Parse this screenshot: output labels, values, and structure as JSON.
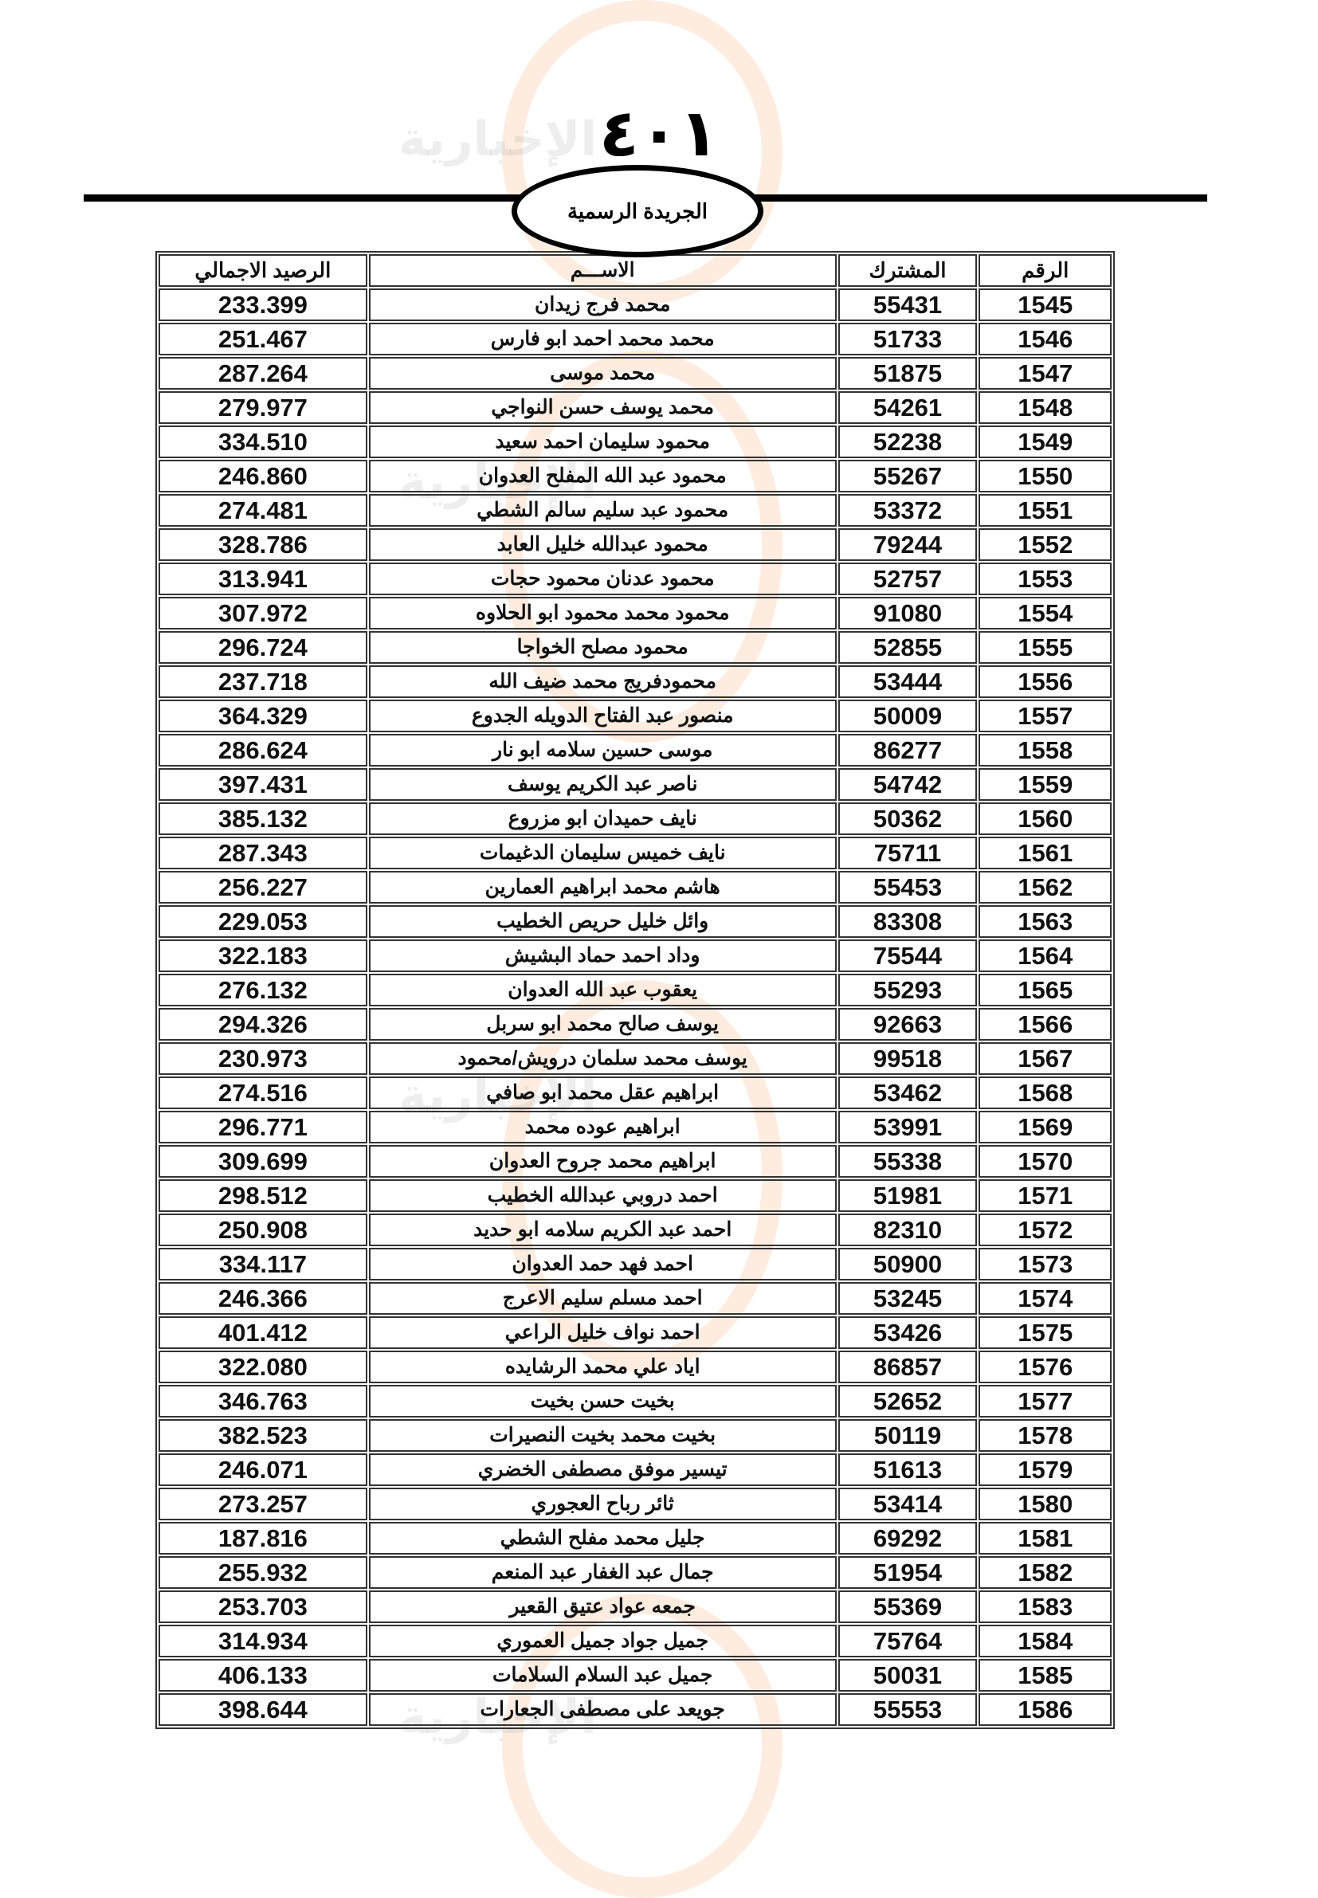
{
  "header": {
    "page_number": "٤٠١",
    "publication": "الجريدة الرسمية",
    "watermark": "مدار الساعة الإخبارية"
  },
  "table": {
    "columns": [
      "الرقم",
      "المشترك",
      "الاســـم",
      "الرصيد الاجمالي"
    ],
    "rows": [
      [
        "1545",
        "55431",
        "محمد فرج زيدان",
        "233.399"
      ],
      [
        "1546",
        "51733",
        "محمد محمد احمد ابو فارس",
        "251.467"
      ],
      [
        "1547",
        "51875",
        "محمد موسى",
        "287.264"
      ],
      [
        "1548",
        "54261",
        "محمد يوسف حسن النواجي",
        "279.977"
      ],
      [
        "1549",
        "52238",
        "محمود سليمان احمد سعيد",
        "334.510"
      ],
      [
        "1550",
        "55267",
        "محمود عبد الله المفلح العدوان",
        "246.860"
      ],
      [
        "1551",
        "53372",
        "محمود عبد سليم سالم الشطي",
        "274.481"
      ],
      [
        "1552",
        "79244",
        "محمود عبدالله خليل العابد",
        "328.786"
      ],
      [
        "1553",
        "52757",
        "محمود عدنان محمود حجات",
        "313.941"
      ],
      [
        "1554",
        "91080",
        "محمود محمد محمود ابو الحلاوه",
        "307.972"
      ],
      [
        "1555",
        "52855",
        "محمود مصلح الخواجا",
        "296.724"
      ],
      [
        "1556",
        "53444",
        "محمودفريج محمد ضيف الله",
        "237.718"
      ],
      [
        "1557",
        "50009",
        "منصور عبد الفتاح الدويله الجدوع",
        "364.329"
      ],
      [
        "1558",
        "86277",
        "موسى حسين سلامه ابو نار",
        "286.624"
      ],
      [
        "1559",
        "54742",
        "ناصر عبد الكريم يوسف",
        "397.431"
      ],
      [
        "1560",
        "50362",
        "نايف  حميدان ابو مزروع",
        "385.132"
      ],
      [
        "1561",
        "75711",
        "نايف خميس سليمان الدغيمات",
        "287.343"
      ],
      [
        "1562",
        "55453",
        "هاشم محمد ابراهيم العمارين",
        "256.227"
      ],
      [
        "1563",
        "83308",
        "وائل خليل حريص الخطيب",
        "229.053"
      ],
      [
        "1564",
        "75544",
        "وداد احمد حماد البشيش",
        "322.183"
      ],
      [
        "1565",
        "55293",
        "يعقوب  عبد الله العدوان",
        "276.132"
      ],
      [
        "1566",
        "92663",
        "يوسف صالح محمد ابو سربل",
        "294.326"
      ],
      [
        "1567",
        "99518",
        "يوسف محمد سلمان درويش/محمود",
        "230.973"
      ],
      [
        "1568",
        "53462",
        "ابراهيم عقل محمد ابو صافي",
        "274.516"
      ],
      [
        "1569",
        "53991",
        "ابراهيم عوده محمد",
        "296.771"
      ],
      [
        "1570",
        "55338",
        "ابراهيم محمد جروح العدوان",
        "309.699"
      ],
      [
        "1571",
        "51981",
        "احمد دروبي عبدالله الخطيب",
        "298.512"
      ],
      [
        "1572",
        "82310",
        "احمد عبد الكريم  سلامه ابو حديد",
        "250.908"
      ],
      [
        "1573",
        "50900",
        "احمد فهد حمد العدوان",
        "334.117"
      ],
      [
        "1574",
        "53245",
        "احمد مسلم سليم الاعرج",
        "246.366"
      ],
      [
        "1575",
        "53426",
        "احمد نواف  خليل الراعي",
        "401.412"
      ],
      [
        "1576",
        "86857",
        "اياد علي محمد الرشايده",
        "322.080"
      ],
      [
        "1577",
        "52652",
        "بخيت  حسن بخيت",
        "346.763"
      ],
      [
        "1578",
        "50119",
        "بخيت  محمد بخيت  النصيرات",
        "382.523"
      ],
      [
        "1579",
        "51613",
        "تيسير موفق مصطفى الخضري",
        "246.071"
      ],
      [
        "1580",
        "53414",
        "ثائر رباح العجوري",
        "273.257"
      ],
      [
        "1581",
        "69292",
        "جليل محمد مفلح الشطي",
        "187.816"
      ],
      [
        "1582",
        "51954",
        "جمال عبد الغفار عبد المنعم",
        "255.932"
      ],
      [
        "1583",
        "55369",
        "جمعه عواد  عتيق القعير",
        "253.703"
      ],
      [
        "1584",
        "75764",
        "جميل جواد جميل العموري",
        "314.934"
      ],
      [
        "1585",
        "50031",
        "جميل عبد السلام السلامات",
        "406.133"
      ],
      [
        "1586",
        "55553",
        "جويعد على مصطفى الجعارات",
        "398.644"
      ]
    ]
  }
}
